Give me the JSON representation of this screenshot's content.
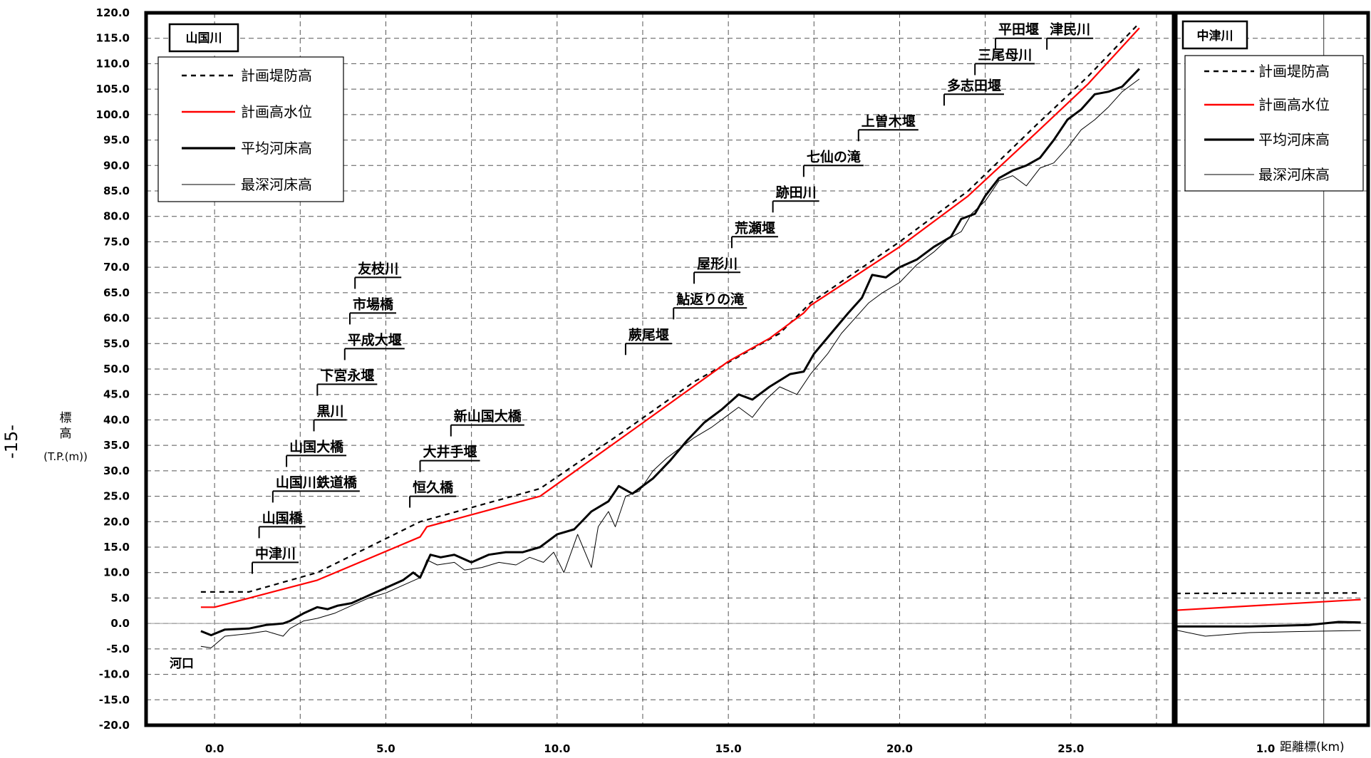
{
  "chart_data": [
    {
      "type": "line",
      "title": "山国川",
      "ylabel_lines": [
        "標",
        "高",
        "(T.P.(m))"
      ],
      "page_marker": "-15-",
      "ylim": [
        -20,
        120
      ],
      "y_ticks": [
        "120.0",
        "115.0",
        "110.0",
        "105.0",
        "100.0",
        "95.0",
        "90.0",
        "85.0",
        "80.0",
        "75.0",
        "70.0",
        "65.0",
        "60.0",
        "55.0",
        "50.0",
        "45.0",
        "40.0",
        "35.0",
        "30.0",
        "25.0",
        "20.0",
        "15.0",
        "10.0",
        "5.0",
        "0.0",
        "-5.0",
        "-10.0",
        "-15.0",
        "-20.0"
      ],
      "xlim": [
        -2.0,
        28.0
      ],
      "x_ticks": [
        "0.0",
        "5.0",
        "10.0",
        "15.0",
        "20.0",
        "25.0"
      ],
      "grid": true,
      "legend_position": "top-left",
      "series": [
        {
          "name": "計画堤防高",
          "style": "dashed",
          "color": "#000000",
          "x": [
            -0.4,
            0.0,
            1.0,
            3.0,
            6.0,
            9.5,
            12.0,
            14.0,
            16.5,
            17.4,
            20.0,
            22.0,
            24.0,
            25.5,
            27.0
          ],
          "y": [
            6.2,
            6.2,
            6.2,
            10.0,
            20.0,
            26.5,
            38.0,
            47.5,
            57.0,
            63.0,
            75.0,
            85.0,
            98.0,
            107.5,
            118.0
          ]
        },
        {
          "name": "計画高水位",
          "style": "solid",
          "color": "#ff0000",
          "x": [
            -0.4,
            0.0,
            3.0,
            6.0,
            6.2,
            9.5,
            12.0,
            15.0,
            16.2,
            17.2,
            17.4,
            20.0,
            22.0,
            24.0,
            25.5,
            27.0
          ],
          "y": [
            3.2,
            3.2,
            8.5,
            17.0,
            19.0,
            25.0,
            37.0,
            51.5,
            56.0,
            61.0,
            62.5,
            74.0,
            84.0,
            96.5,
            106.0,
            117.0
          ]
        },
        {
          "name": "平均河床高",
          "style": "solid",
          "color": "#000000",
          "width": 3,
          "x": [
            -0.4,
            -0.1,
            0.3,
            1.0,
            1.5,
            2.0,
            2.2,
            2.6,
            3.0,
            3.3,
            3.6,
            4.0,
            4.5,
            5.0,
            5.5,
            5.8,
            6.0,
            6.3,
            6.6,
            7.0,
            7.5,
            8.0,
            8.5,
            9.0,
            9.5,
            10.0,
            10.5,
            11.0,
            11.5,
            11.8,
            12.2,
            12.8,
            13.3,
            13.8,
            14.3,
            14.8,
            15.3,
            15.7,
            16.2,
            16.8,
            17.2,
            17.5,
            18.0,
            18.5,
            18.9,
            19.2,
            19.6,
            20.0,
            20.5,
            21.0,
            21.5,
            21.8,
            22.2,
            22.5,
            22.9,
            23.3,
            23.7,
            24.1,
            24.5,
            24.9,
            25.3,
            25.7,
            26.1,
            26.5,
            27.0
          ],
          "y": [
            -1.5,
            -2.3,
            -1.2,
            -1.0,
            -0.3,
            0.0,
            0.5,
            2.0,
            3.2,
            2.8,
            3.5,
            4.0,
            5.5,
            7.0,
            8.5,
            10.0,
            9.0,
            13.5,
            13.0,
            13.5,
            12.0,
            13.5,
            14.0,
            14.0,
            15.0,
            17.5,
            18.5,
            22.0,
            24.0,
            27.0,
            25.5,
            28.5,
            32.0,
            36.0,
            39.5,
            42.0,
            45.0,
            44.0,
            46.5,
            49.0,
            49.5,
            53.0,
            57.0,
            61.0,
            64.0,
            68.5,
            68.0,
            70.0,
            71.5,
            74.0,
            76.0,
            79.5,
            80.5,
            84.0,
            87.5,
            89.0,
            90.0,
            91.5,
            95.0,
            99.0,
            101.0,
            104.0,
            104.5,
            105.5,
            109.0
          ]
        },
        {
          "name": "最深河床高",
          "style": "solid",
          "color": "#000000",
          "width": 1,
          "x": [
            -0.4,
            -0.1,
            0.3,
            1.0,
            1.5,
            2.0,
            2.2,
            2.6,
            3.0,
            3.5,
            4.0,
            4.5,
            5.0,
            5.5,
            6.0,
            6.2,
            6.5,
            7.0,
            7.3,
            7.8,
            8.3,
            8.8,
            9.2,
            9.6,
            9.9,
            10.2,
            10.6,
            11.0,
            11.2,
            11.5,
            11.7,
            12.0,
            12.4,
            12.8,
            13.2,
            13.6,
            14.0,
            14.5,
            15.0,
            15.3,
            15.7,
            16.1,
            16.5,
            17.0,
            17.4,
            17.9,
            18.3,
            18.7,
            19.1,
            19.5,
            20.0,
            20.5,
            21.0,
            21.4,
            21.8,
            22.1,
            22.5,
            22.9,
            23.3,
            23.7,
            24.1,
            24.5,
            24.9,
            25.3,
            25.7,
            26.1,
            26.5,
            27.0
          ],
          "y": [
            -4.5,
            -4.8,
            -2.5,
            -2.0,
            -1.5,
            -2.5,
            -1.0,
            0.5,
            1.0,
            2.0,
            3.5,
            5.0,
            6.0,
            7.5,
            9.0,
            12.5,
            11.5,
            12.0,
            10.5,
            11.0,
            12.0,
            11.5,
            13.0,
            12.0,
            14.0,
            10.0,
            17.5,
            11.0,
            19.0,
            22.0,
            19.0,
            25.0,
            26.0,
            30.0,
            32.5,
            34.5,
            36.5,
            38.5,
            41.0,
            42.5,
            40.5,
            44.0,
            46.5,
            45.0,
            49.0,
            53.0,
            57.0,
            60.0,
            63.0,
            65.0,
            67.0,
            70.5,
            73.0,
            75.5,
            77.0,
            80.5,
            83.0,
            87.0,
            88.0,
            86.0,
            89.5,
            90.5,
            93.5,
            97.0,
            99.0,
            101.5,
            104.5,
            107.0
          ]
        }
      ],
      "annotations": [
        {
          "text": "中津川",
          "x": 1.1,
          "y": 12.0
        },
        {
          "text": "山国橋",
          "x": 1.3,
          "y": 19.0
        },
        {
          "text": "山国川鉄道橋",
          "x": 1.7,
          "y": 26.0
        },
        {
          "text": "山国大橋",
          "x": 2.1,
          "y": 33.0
        },
        {
          "text": "黒川",
          "x": 2.9,
          "y": 40.0
        },
        {
          "text": "下宮永堰",
          "x": 3.0,
          "y": 47.0
        },
        {
          "text": "平成大堰",
          "x": 3.8,
          "y": 54.0
        },
        {
          "text": "市場橋",
          "x": 3.95,
          "y": 61.0
        },
        {
          "text": "友枝川",
          "x": 4.1,
          "y": 68.0
        },
        {
          "text": "恒久橋",
          "x": 5.7,
          "y": 25.0
        },
        {
          "text": "大井手堰",
          "x": 6.0,
          "y": 32.0
        },
        {
          "text": "新山国大橋",
          "x": 6.9,
          "y": 39.0
        },
        {
          "text": "蕨尾堰",
          "x": 12.0,
          "y": 55.0
        },
        {
          "text": "鮎返りの滝",
          "x": 13.4,
          "y": 62.0
        },
        {
          "text": "屋形川",
          "x": 14.0,
          "y": 69.0
        },
        {
          "text": "荒瀬堰",
          "x": 15.1,
          "y": 76.0
        },
        {
          "text": "跡田川",
          "x": 16.3,
          "y": 83.0
        },
        {
          "text": "七仙の滝",
          "x": 17.2,
          "y": 90.0
        },
        {
          "text": "上曽木堰",
          "x": 18.8,
          "y": 97.0
        },
        {
          "text": "多志田堰",
          "x": 21.3,
          "y": 104.0
        },
        {
          "text": "三尾母川",
          "x": 22.2,
          "y": 110.0
        },
        {
          "text": "平田堰",
          "x": 22.8,
          "y": 115.0
        },
        {
          "text": "津民川",
          "x": 24.3,
          "y": 115.0
        }
      ],
      "corner_note": "河口"
    },
    {
      "type": "line",
      "title": "中津川",
      "ylim": [
        -20,
        120
      ],
      "xlim": [
        0.0,
        1.3
      ],
      "x_ticks": [
        "1.0"
      ],
      "xlabel": "距離標(km)",
      "grid": true,
      "legend_position": "top",
      "series": [
        {
          "name": "計画堤防高",
          "style": "dashed",
          "color": "#000000",
          "x": [
            0.0,
            1.25
          ],
          "y": [
            5.9,
            6.0
          ]
        },
        {
          "name": "計画高水位",
          "style": "solid",
          "color": "#ff0000",
          "x": [
            0.0,
            1.25
          ],
          "y": [
            2.6,
            4.7
          ]
        },
        {
          "name": "平均河床高",
          "style": "solid",
          "color": "#000000",
          "width": 3,
          "x": [
            0.0,
            0.5,
            0.9,
            1.1,
            1.25
          ],
          "y": [
            -0.6,
            -0.6,
            -0.3,
            0.3,
            0.2
          ]
        },
        {
          "name": "最深河床高",
          "style": "solid",
          "color": "#000000",
          "width": 1,
          "x": [
            0.0,
            0.2,
            0.5,
            0.8,
            1.0,
            1.25
          ],
          "y": [
            -1.3,
            -2.5,
            -1.8,
            -1.6,
            -1.5,
            -1.4
          ]
        }
      ]
    }
  ]
}
